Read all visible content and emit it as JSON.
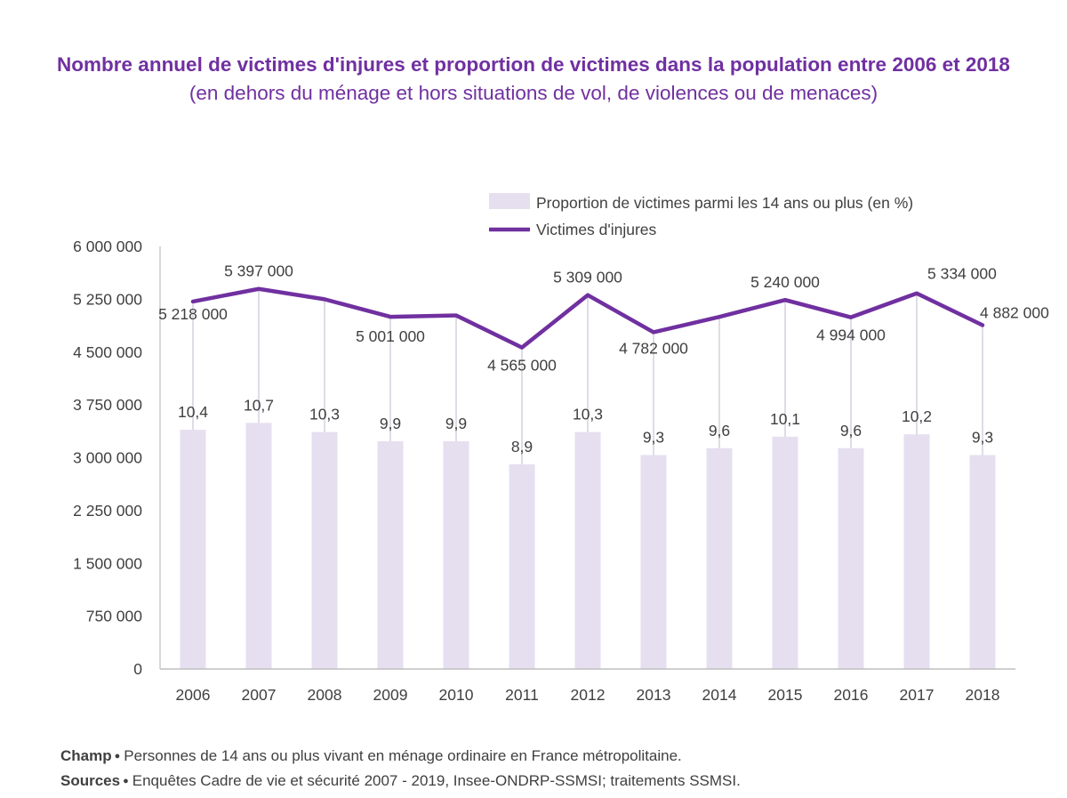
{
  "title": "Nombre annuel de victimes d'injures et proportion de victimes dans la population entre 2006 et 2018",
  "subtitle": "(en dehors du ménage et hors situations de vol, de violences ou de menaces)",
  "notes": {
    "champ_label": "Champ",
    "champ_text": "Personnes de 14 ans ou plus vivant en ménage ordinaire en France métropolitaine.",
    "sources_label": "Sources",
    "sources_text": "Enquêtes Cadre de vie et sécurité 2007 - 2019, Insee-ONDRP-SSMSI; traitements SSMSI."
  },
  "colors": {
    "title": "#7030a0",
    "bar": "#e6dff0",
    "line": "#7030a0",
    "text": "#404040",
    "axis": "#bfbfbf"
  },
  "chart_data": {
    "type": "bar",
    "categories": [
      "2006",
      "2007",
      "2008",
      "2009",
      "2010",
      "2011",
      "2012",
      "2013",
      "2014",
      "2015",
      "2016",
      "2017",
      "2018"
    ],
    "series": [
      {
        "name": "Proportion de victimes parmi les 14 ans ou plus (en %)",
        "type": "bar",
        "values": [
          10.4,
          10.7,
          10.3,
          9.9,
          9.9,
          8.9,
          10.3,
          9.3,
          9.6,
          10.1,
          9.6,
          10.2,
          9.3
        ],
        "labels": [
          "10,4",
          "10,7",
          "10,3",
          "9,9",
          "9,9",
          "8,9",
          "10,3",
          "9,3",
          "9,6",
          "10,1",
          "9,6",
          "10,2",
          "9,3"
        ]
      },
      {
        "name": "Victimes d'injures",
        "type": "line",
        "values": [
          5218000,
          5397000,
          5250000,
          5001000,
          5020000,
          4565000,
          5309000,
          4782000,
          5000000,
          5240000,
          4994000,
          5334000,
          4882000
        ],
        "labels": [
          "5 218 000",
          "5 397 000",
          "",
          "5 001 000",
          "",
          "4 565 000",
          "5 309 000",
          "4 782 000",
          "",
          "5 240 000",
          "4 994 000",
          "5 334 000",
          "4 882 000"
        ]
      }
    ],
    "y_ticks": [
      "0",
      "750 000",
      "1 500 000",
      "2 250 000",
      "3 000 000",
      "3 750 000",
      "4 500 000",
      "5 250 000",
      "6 000 000"
    ],
    "ylim": [
      0,
      6000000
    ],
    "legend_position": "top-right",
    "grid": false
  }
}
